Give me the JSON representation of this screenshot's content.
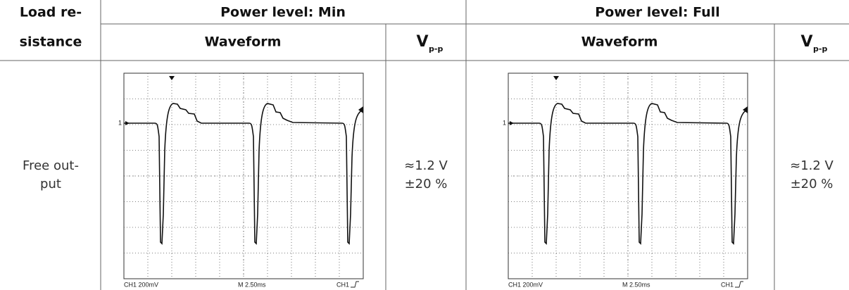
{
  "header": {
    "load_resistance": [
      "Load re-",
      "sistance"
    ],
    "groups": [
      {
        "title": "Power level: Min",
        "waveform": "Waveform",
        "vpp": {
          "symbol": "V",
          "subscript": "p-p"
        }
      },
      {
        "title": "Power level: Full",
        "waveform": "Waveform",
        "vpp": {
          "symbol": "V",
          "subscript": "p-p"
        }
      }
    ]
  },
  "rows": [
    {
      "load": [
        "Free out-",
        "put"
      ],
      "cells": [
        {
          "scope": {
            "level_marker": "1",
            "scale": "CH1 200mV",
            "time": "M 2.50ms",
            "trigger": "CH1"
          },
          "vpp": [
            "≈1.2 V",
            "±20 %"
          ]
        },
        {
          "scope": {
            "level_marker": "1",
            "scale": "CH1 200mV",
            "time": "M 2.50ms",
            "trigger": "CH1"
          },
          "vpp": [
            "≈1.2 V",
            "±20 %"
          ]
        }
      ]
    }
  ]
}
